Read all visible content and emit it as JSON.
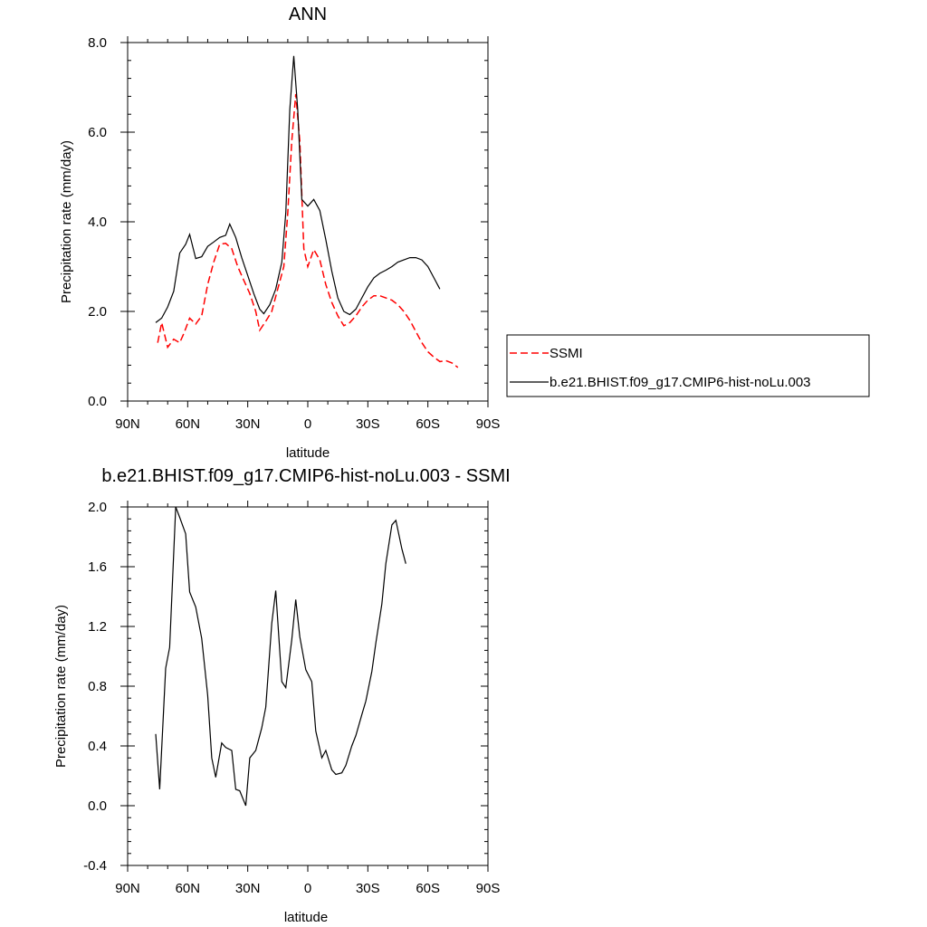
{
  "chart_data": [
    {
      "type": "line",
      "title": "ANN",
      "xlabel": "latitude",
      "ylabel": "Precipitation rate (mm/day)",
      "xlim": [
        -90,
        90
      ],
      "ylim": [
        0,
        8
      ],
      "x_direction": "north-to-south",
      "x_ticks": [
        {
          "value": -90,
          "label": "90N"
        },
        {
          "value": -60,
          "label": "60N"
        },
        {
          "value": -30,
          "label": "30N"
        },
        {
          "value": 0,
          "label": "0"
        },
        {
          "value": 30,
          "label": "30S"
        },
        {
          "value": 60,
          "label": "60S"
        },
        {
          "value": 90,
          "label": "90S"
        }
      ],
      "y_ticks": [
        {
          "value": 0,
          "label": "0.0"
        },
        {
          "value": 2,
          "label": "2.0"
        },
        {
          "value": 4,
          "label": "4.0"
        },
        {
          "value": 6,
          "label": "6.0"
        },
        {
          "value": 8,
          "label": "8.0"
        }
      ],
      "grid": false,
      "legend_position": "right",
      "series": [
        {
          "name": "SSMI",
          "color": "#ff0000",
          "dash": "dashed",
          "points": [
            [
              -75,
              1.3
            ],
            [
              -73,
              1.75
            ],
            [
              -70,
              1.2
            ],
            [
              -67,
              1.38
            ],
            [
              -64,
              1.3
            ],
            [
              -62,
              1.5
            ],
            [
              -59,
              1.85
            ],
            [
              -56,
              1.72
            ],
            [
              -53,
              1.9
            ],
            [
              -50,
              2.6
            ],
            [
              -47,
              3.1
            ],
            [
              -44,
              3.5
            ],
            [
              -41,
              3.52
            ],
            [
              -38,
              3.4
            ],
            [
              -35,
              3.0
            ],
            [
              -32,
              2.7
            ],
            [
              -29,
              2.4
            ],
            [
              -26,
              2.0
            ],
            [
              -24,
              1.58
            ],
            [
              -21,
              1.78
            ],
            [
              -18,
              2.0
            ],
            [
              -15,
              2.5
            ],
            [
              -12,
              3.0
            ],
            [
              -10,
              4.2
            ],
            [
              -8,
              5.8
            ],
            [
              -6,
              6.85
            ],
            [
              -4,
              5.8
            ],
            [
              -2,
              3.4
            ],
            [
              0,
              3.0
            ],
            [
              3,
              3.38
            ],
            [
              6,
              3.15
            ],
            [
              9,
              2.6
            ],
            [
              12,
              2.2
            ],
            [
              15,
              1.9
            ],
            [
              18,
              1.68
            ],
            [
              21,
              1.75
            ],
            [
              24,
              1.9
            ],
            [
              27,
              2.1
            ],
            [
              30,
              2.25
            ],
            [
              33,
              2.35
            ],
            [
              36,
              2.35
            ],
            [
              39,
              2.3
            ],
            [
              42,
              2.25
            ],
            [
              45,
              2.15
            ],
            [
              48,
              2.0
            ],
            [
              51,
              1.8
            ],
            [
              54,
              1.55
            ],
            [
              57,
              1.3
            ],
            [
              60,
              1.1
            ],
            [
              63,
              0.98
            ],
            [
              66,
              0.88
            ],
            [
              69,
              0.9
            ],
            [
              72,
              0.85
            ],
            [
              75,
              0.75
            ]
          ]
        },
        {
          "name": "b.e21.BHIST.f09_g17.CMIP6-hist-noLu.003",
          "color": "#000000",
          "dash": "solid",
          "points": [
            [
              -76,
              1.75
            ],
            [
              -73,
              1.85
            ],
            [
              -70,
              2.1
            ],
            [
              -67,
              2.45
            ],
            [
              -64,
              3.3
            ],
            [
              -61,
              3.5
            ],
            [
              -59,
              3.72
            ],
            [
              -56,
              3.18
            ],
            [
              -53,
              3.22
            ],
            [
              -50,
              3.45
            ],
            [
              -47,
              3.55
            ],
            [
              -44,
              3.65
            ],
            [
              -41,
              3.7
            ],
            [
              -39,
              3.95
            ],
            [
              -36,
              3.65
            ],
            [
              -33,
              3.2
            ],
            [
              -30,
              2.8
            ],
            [
              -27,
              2.4
            ],
            [
              -24,
              2.05
            ],
            [
              -22,
              1.95
            ],
            [
              -19,
              2.15
            ],
            [
              -16,
              2.5
            ],
            [
              -13,
              3.1
            ],
            [
              -11,
              4.2
            ],
            [
              -9,
              6.5
            ],
            [
              -7,
              7.7
            ],
            [
              -5,
              6.5
            ],
            [
              -3,
              4.5
            ],
            [
              0,
              4.35
            ],
            [
              3,
              4.5
            ],
            [
              6,
              4.25
            ],
            [
              9,
              3.6
            ],
            [
              12,
              2.9
            ],
            [
              15,
              2.3
            ],
            [
              18,
              2.0
            ],
            [
              21,
              1.93
            ],
            [
              24,
              2.05
            ],
            [
              27,
              2.3
            ],
            [
              30,
              2.55
            ],
            [
              33,
              2.75
            ],
            [
              36,
              2.85
            ],
            [
              39,
              2.92
            ],
            [
              42,
              3.0
            ],
            [
              45,
              3.1
            ],
            [
              48,
              3.15
            ],
            [
              51,
              3.2
            ],
            [
              54,
              3.2
            ],
            [
              57,
              3.15
            ],
            [
              60,
              3.0
            ],
            [
              63,
              2.75
            ],
            [
              66,
              2.5
            ]
          ]
        }
      ]
    },
    {
      "type": "line",
      "title": "b.e21.BHIST.f09_g17.CMIP6-hist-noLu.003 - SSMI",
      "xlabel": "latitude",
      "ylabel": "Precipitation rate (mm/day)",
      "xlim": [
        -90,
        90
      ],
      "ylim": [
        -0.4,
        2.0
      ],
      "x_direction": "north-to-south",
      "x_ticks": [
        {
          "value": -90,
          "label": "90N"
        },
        {
          "value": -60,
          "label": "60N"
        },
        {
          "value": -30,
          "label": "30N"
        },
        {
          "value": 0,
          "label": "0"
        },
        {
          "value": 30,
          "label": "30S"
        },
        {
          "value": 60,
          "label": "60S"
        },
        {
          "value": 90,
          "label": "90S"
        }
      ],
      "y_ticks": [
        {
          "value": -0.4,
          "label": "-0.4"
        },
        {
          "value": 0.0,
          "label": "0.0"
        },
        {
          "value": 0.4,
          "label": "0.4"
        },
        {
          "value": 0.8,
          "label": "0.8"
        },
        {
          "value": 1.2,
          "label": "1.2"
        },
        {
          "value": 1.6,
          "label": "1.6"
        },
        {
          "value": 2.0,
          "label": "2.0"
        }
      ],
      "grid": false,
      "series": [
        {
          "color": "#000000",
          "dash": "solid",
          "points": [
            [
              -76,
              0.48
            ],
            [
              -74,
              0.11
            ],
            [
              -71,
              0.92
            ],
            [
              -69,
              1.06
            ],
            [
              -66,
              2.0
            ],
            [
              -64,
              1.93
            ],
            [
              -61,
              1.82
            ],
            [
              -59,
              1.43
            ],
            [
              -56,
              1.33
            ],
            [
              -53,
              1.12
            ],
            [
              -50,
              0.74
            ],
            [
              -48,
              0.32
            ],
            [
              -46,
              0.19
            ],
            [
              -43,
              0.42
            ],
            [
              -41,
              0.39
            ],
            [
              -38,
              0.37
            ],
            [
              -36,
              0.11
            ],
            [
              -34,
              0.1
            ],
            [
              -31,
              0.0
            ],
            [
              -29,
              0.32
            ],
            [
              -26,
              0.37
            ],
            [
              -23,
              0.52
            ],
            [
              -21,
              0.66
            ],
            [
              -18,
              1.22
            ],
            [
              -16,
              1.44
            ],
            [
              -13,
              0.83
            ],
            [
              -11,
              0.79
            ],
            [
              -8,
              1.11
            ],
            [
              -6,
              1.38
            ],
            [
              -4,
              1.13
            ],
            [
              -1,
              0.91
            ],
            [
              2,
              0.83
            ],
            [
              4,
              0.5
            ],
            [
              7,
              0.32
            ],
            [
              9,
              0.37
            ],
            [
              12,
              0.24
            ],
            [
              14,
              0.21
            ],
            [
              17,
              0.22
            ],
            [
              19,
              0.27
            ],
            [
              22,
              0.4
            ],
            [
              24,
              0.47
            ],
            [
              27,
              0.61
            ],
            [
              29,
              0.7
            ],
            [
              32,
              0.9
            ],
            [
              34,
              1.09
            ],
            [
              37,
              1.35
            ],
            [
              39,
              1.62
            ],
            [
              42,
              1.88
            ],
            [
              44,
              1.91
            ],
            [
              47,
              1.72
            ],
            [
              49,
              1.62
            ]
          ]
        }
      ]
    }
  ]
}
